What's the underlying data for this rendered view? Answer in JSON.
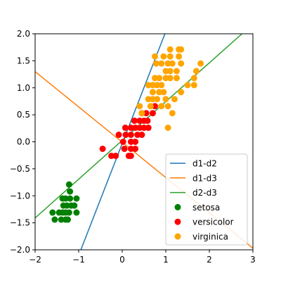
{
  "chart_data": {
    "type": "scatter",
    "title": "",
    "xlabel": "",
    "ylabel": "",
    "xlim": [
      -2,
      3
    ],
    "ylim": [
      -2,
      2
    ],
    "xticks": [
      -2,
      -1,
      0,
      1,
      2,
      3
    ],
    "yticks": [
      -2.0,
      -1.5,
      -1.0,
      -0.5,
      0.0,
      0.5,
      1.0,
      1.5,
      2.0
    ],
    "xtick_labels": [
      "−2",
      "−1",
      "0",
      "1",
      "2",
      "3"
    ],
    "ytick_labels": [
      "−2.0",
      "−1.5",
      "−1.0",
      "−0.5",
      "0.0",
      "0.5",
      "1.0",
      "1.5",
      "2.0"
    ],
    "grid": false,
    "legend_position": "lower right",
    "lines": [
      {
        "name": "d1-d2",
        "color": "#1f77b4",
        "points": [
          [
            -0.95,
            -2.0
          ],
          [
            0.98,
            2.0
          ]
        ]
      },
      {
        "name": "d1-d3",
        "color": "#ff7f0e",
        "points": [
          [
            -2.0,
            1.3
          ],
          [
            3.0,
            -1.97
          ]
        ]
      },
      {
        "name": "d2-d3",
        "color": "#2ca02c",
        "points": [
          [
            -2.0,
            -1.41
          ],
          [
            2.75,
            2.0
          ]
        ]
      }
    ],
    "series": [
      {
        "name": "setosa",
        "color": "#008000",
        "points": [
          [
            -1.22,
            -0.79
          ],
          [
            -1.2,
            -0.92
          ],
          [
            -1.37,
            -1.05
          ],
          [
            -1.3,
            -1.05
          ],
          [
            -1.2,
            -1.05
          ],
          [
            -1.05,
            -1.05
          ],
          [
            -1.35,
            -1.18
          ],
          [
            -1.27,
            -1.18
          ],
          [
            -1.17,
            -1.18
          ],
          [
            -1.1,
            -1.18
          ],
          [
            -1.6,
            -1.31
          ],
          [
            -1.45,
            -1.31
          ],
          [
            -1.37,
            -1.31
          ],
          [
            -1.3,
            -1.31
          ],
          [
            -1.22,
            -1.31
          ],
          [
            -1.05,
            -1.31
          ],
          [
            -1.4,
            -1.44
          ],
          [
            -1.3,
            -1.44
          ],
          [
            -1.25,
            -1.44
          ],
          [
            -1.55,
            -1.44
          ]
        ]
      },
      {
        "name": "versicolor",
        "color": "#ff0000",
        "points": [
          [
            -0.45,
            -0.13
          ],
          [
            -0.25,
            -0.26
          ],
          [
            -0.15,
            -0.26
          ],
          [
            0.2,
            -0.26
          ],
          [
            0.15,
            -0.26
          ],
          [
            0.05,
            -0.13
          ],
          [
            0.2,
            -0.13
          ],
          [
            0.3,
            -0.13
          ],
          [
            0.02,
            0.0
          ],
          [
            0.2,
            0.0
          ],
          [
            0.3,
            0.0
          ],
          [
            0.08,
            0.13
          ],
          [
            0.2,
            0.13
          ],
          [
            0.35,
            0.13
          ],
          [
            0.45,
            0.13
          ],
          [
            -0.08,
            0.13
          ],
          [
            0.07,
            0.26
          ],
          [
            0.2,
            0.26
          ],
          [
            0.3,
            0.26
          ],
          [
            0.4,
            0.26
          ],
          [
            0.5,
            0.26
          ],
          [
            0.6,
            0.26
          ],
          [
            0.28,
            0.39
          ],
          [
            0.4,
            0.39
          ],
          [
            0.5,
            0.39
          ],
          [
            0.58,
            0.39
          ],
          [
            0.45,
            0.53
          ],
          [
            0.55,
            0.53
          ],
          [
            0.7,
            0.53
          ],
          [
            0.75,
            0.66
          ]
        ]
      },
      {
        "name": "virginica",
        "color": "#ffa500",
        "points": [
          [
            0.4,
            0.66
          ],
          [
            0.6,
            0.79
          ],
          [
            0.7,
            0.79
          ],
          [
            0.8,
            0.79
          ],
          [
            0.45,
            0.53
          ],
          [
            0.65,
            0.66
          ],
          [
            0.7,
            0.92
          ],
          [
            0.85,
            0.92
          ],
          [
            0.95,
            0.92
          ],
          [
            0.6,
            1.05
          ],
          [
            0.7,
            1.05
          ],
          [
            0.8,
            1.05
          ],
          [
            0.9,
            1.05
          ],
          [
            0.75,
            1.18
          ],
          [
            0.85,
            1.18
          ],
          [
            1.0,
            1.18
          ],
          [
            1.1,
            1.18
          ],
          [
            1.25,
            1.18
          ],
          [
            1.0,
            1.31
          ],
          [
            1.1,
            1.31
          ],
          [
            1.25,
            1.31
          ],
          [
            0.78,
            1.45
          ],
          [
            0.9,
            1.45
          ],
          [
            1.05,
            1.45
          ],
          [
            1.15,
            1.45
          ],
          [
            1.35,
            1.45
          ],
          [
            0.75,
            1.58
          ],
          [
            0.95,
            1.58
          ],
          [
            1.1,
            1.58
          ],
          [
            1.3,
            1.58
          ],
          [
            1.1,
            1.71
          ],
          [
            1.3,
            1.71
          ],
          [
            1.35,
            1.71
          ],
          [
            1.05,
            0.26
          ],
          [
            1.15,
            0.53
          ],
          [
            1.35,
            0.92
          ],
          [
            1.5,
            1.05
          ],
          [
            1.65,
            1.05
          ],
          [
            1.65,
            1.18
          ],
          [
            1.7,
            1.31
          ],
          [
            1.8,
            1.45
          ],
          [
            0.9,
            0.66
          ],
          [
            1.0,
            0.79
          ],
          [
            1.05,
            0.66
          ],
          [
            1.2,
            0.79
          ]
        ]
      }
    ]
  }
}
